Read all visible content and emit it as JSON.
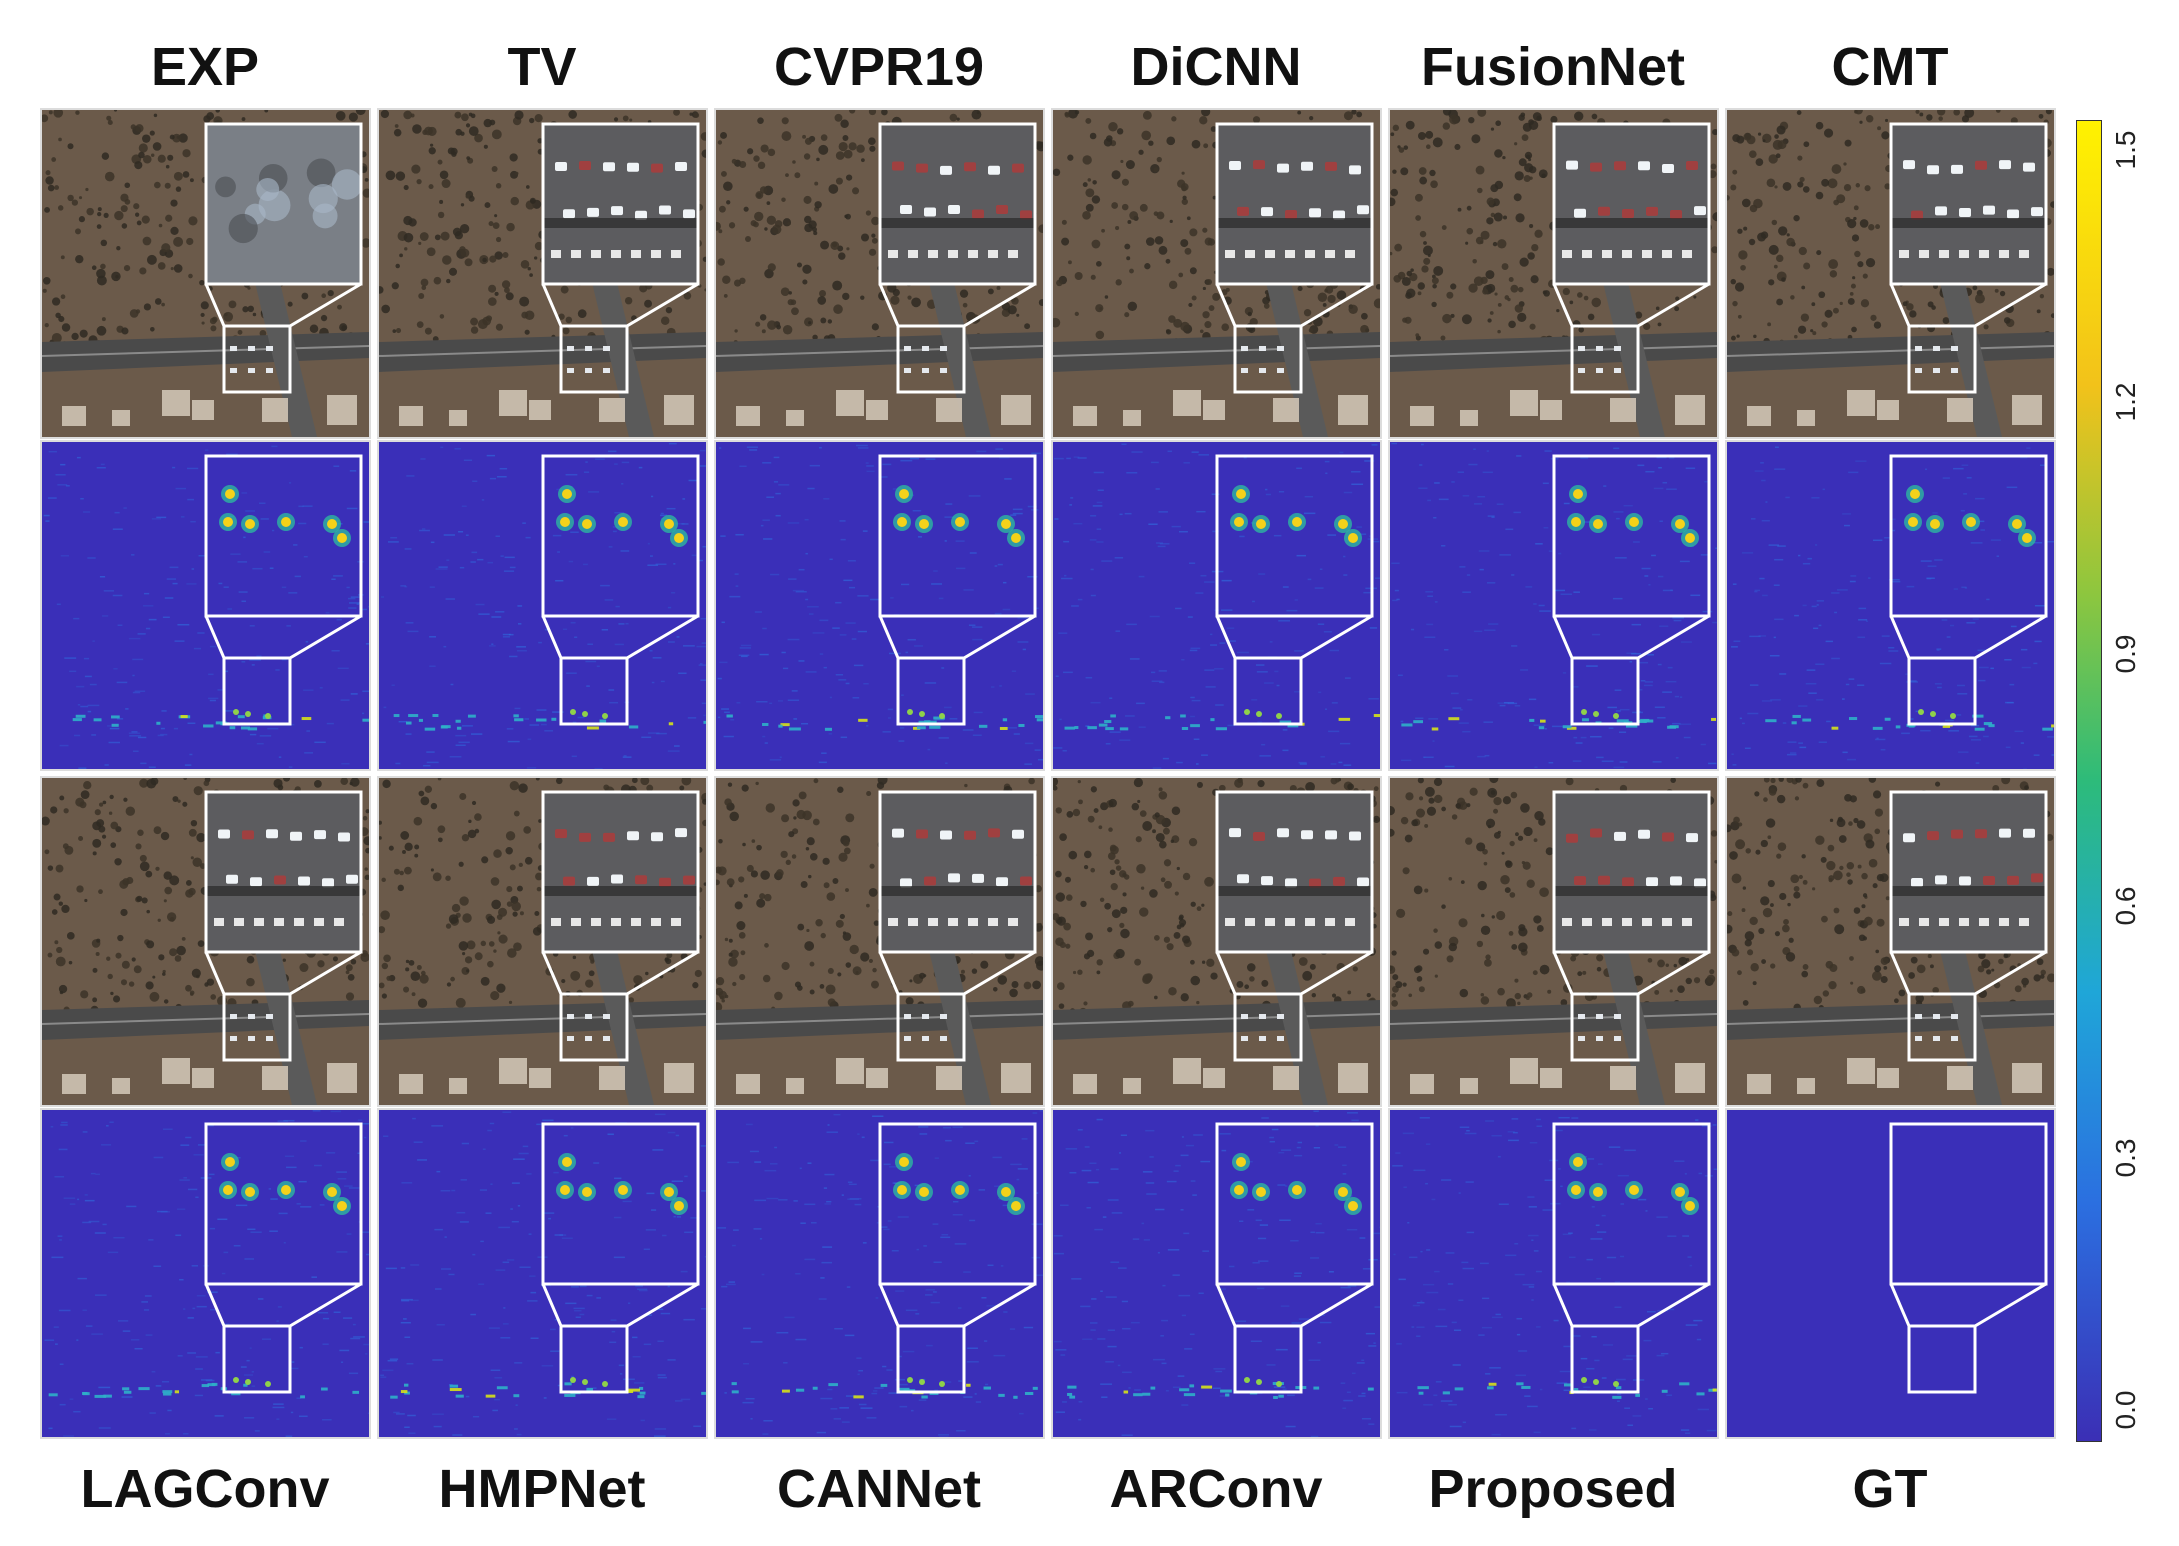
{
  "top_labels": [
    "EXP",
    "TV",
    "CVPR19",
    "DiCNN",
    "FusionNet",
    "CMT"
  ],
  "bottom_labels": [
    "LAGConv",
    "HMPNet",
    "CANNet",
    "ARConv",
    "Proposed",
    "GT"
  ],
  "colorbar": {
    "ticks": [
      "1.5",
      "1.2",
      "0.9",
      "0.6",
      "0.3",
      "0.0"
    ],
    "colormap": "parula-like (blue to yellow)"
  },
  "colors": {
    "error_bg": "#3a2fb8",
    "terrain": "#6b5a4a",
    "road": "#4a4a4a",
    "frame": "#ffffff"
  },
  "rows": [
    {
      "kind": "rgb",
      "methods": [
        "EXP",
        "TV",
        "CVPR19",
        "DiCNN",
        "FusionNet",
        "CMT"
      ]
    },
    {
      "kind": "error",
      "methods": [
        "EXP",
        "TV",
        "CVPR19",
        "DiCNN",
        "FusionNet",
        "CMT"
      ]
    },
    {
      "kind": "rgb",
      "methods": [
        "LAGConv",
        "HMPNet",
        "CANNet",
        "ARConv",
        "Proposed",
        "GT"
      ]
    },
    {
      "kind": "error",
      "methods": [
        "LAGConv",
        "HMPNet",
        "CANNet",
        "ARConv",
        "Proposed",
        "GT"
      ]
    }
  ]
}
